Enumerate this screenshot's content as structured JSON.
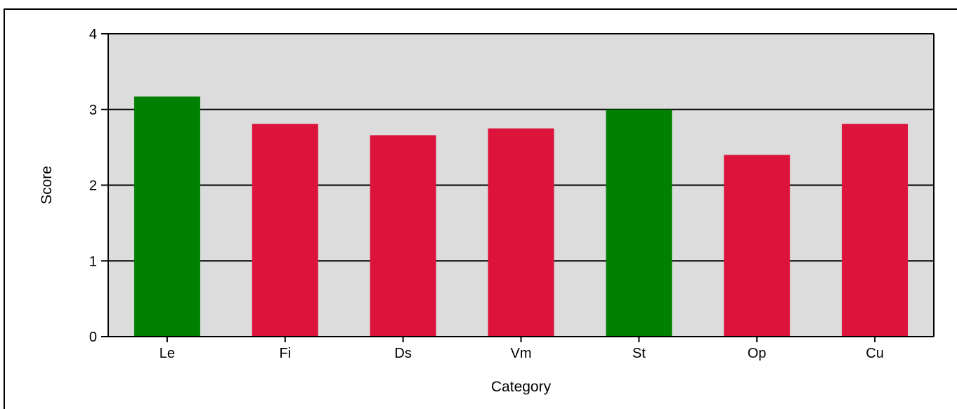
{
  "chart_data": {
    "type": "bar",
    "title": "",
    "xlabel": "Category",
    "ylabel": "Score",
    "categories": [
      "Le",
      "Fi",
      "Ds",
      "Vm",
      "St",
      "Op",
      "Cu"
    ],
    "values": [
      3.17,
      2.81,
      2.66,
      2.75,
      3.0,
      2.4,
      2.81
    ],
    "bar_colors": [
      "#008000",
      "#dc143c",
      "#dc143c",
      "#dc143c",
      "#008000",
      "#dc143c",
      "#dc143c"
    ],
    "yticks": [
      "0",
      "1",
      "2",
      "3",
      "4"
    ],
    "ylim": [
      0,
      4
    ],
    "grid": true,
    "plot_background": "#dcdcdc",
    "legend": "none"
  }
}
